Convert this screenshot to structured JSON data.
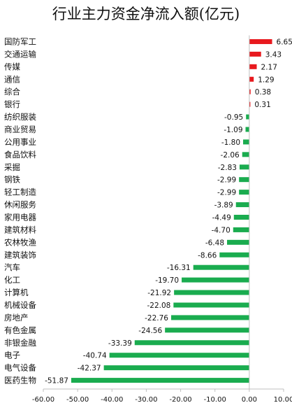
{
  "chart_data": {
    "type": "bar",
    "orientation": "horizontal",
    "title": "行业主力资金净流入额(亿元)",
    "xlabel": "",
    "ylabel": "",
    "xlim": [
      -60,
      10
    ],
    "xticks": [
      "-60.00",
      "-50.00",
      "-40.00",
      "-30.00",
      "-20.00",
      "-10.00",
      "0.00",
      "10.00"
    ],
    "grid": false,
    "legend": "none",
    "colors": {
      "positive": "#e8191e",
      "negative": "#1aac4f",
      "axis": "#bfbfbf"
    },
    "categories": [
      "国防军工",
      "交通运输",
      "传媒",
      "通信",
      "综合",
      "银行",
      "纺织服装",
      "商业贸易",
      "公用事业",
      "食品饮料",
      "采掘",
      "钢铁",
      "轻工制造",
      "休闲服务",
      "家用电器",
      "建筑材料",
      "农林牧渔",
      "建筑装饰",
      "汽车",
      "化工",
      "计算机",
      "机械设备",
      "房地产",
      "有色金属",
      "非银金融",
      "电子",
      "电气设备",
      "医药生物"
    ],
    "values": [
      6.65,
      3.43,
      2.17,
      1.29,
      0.38,
      0.31,
      -0.95,
      -1.09,
      -1.8,
      -2.06,
      -2.83,
      -2.99,
      -2.99,
      -3.89,
      -4.49,
      -4.7,
      -6.48,
      -8.66,
      -16.31,
      -19.7,
      -21.92,
      -22.08,
      -22.76,
      -24.56,
      -33.39,
      -40.74,
      -42.37,
      -51.87
    ],
    "value_labels": [
      "6.65",
      "3.43",
      "2.17",
      "1.29",
      "0.38",
      "0.31",
      "-0.95",
      "-1.09",
      "-1.80",
      "-2.06",
      "-2.83",
      "-2.99",
      "-2.99",
      "-3.89",
      "-4.49",
      "-4.70",
      "-6.48",
      "-8.66",
      "-16.31",
      "-19.70",
      "-21.92",
      "-22.08",
      "-22.76",
      "-24.56",
      "-33.39",
      "-40.74",
      "-42.37",
      "-51.87"
    ]
  }
}
